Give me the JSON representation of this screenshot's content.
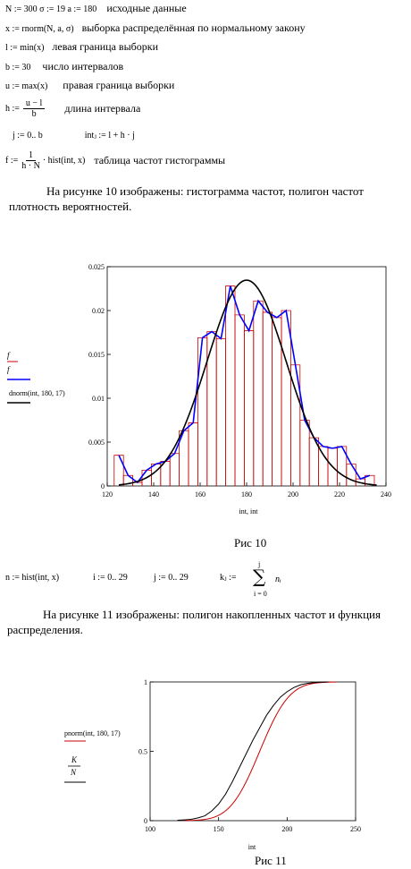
{
  "definitions": [
    {
      "formula": "N := 300   σ := 19     a := 180",
      "comment": "исходные данные"
    },
    {
      "formula": "x := rnorm(N, a, σ)",
      "comment": "выборка распределённая по нормальному закону"
    },
    {
      "formula": "l := min(x)",
      "comment": "левая граница выборки"
    },
    {
      "formula": "b := 30",
      "comment": "число интервалов"
    },
    {
      "formula": "u := max(x)",
      "comment": "правая граница выборки"
    },
    {
      "formula_lhs": "h :=",
      "frac_num": "u − l",
      "frac_den": "b",
      "comment": "длина интервала"
    },
    {
      "formula": "j := 0.. b",
      "formula2": "intⱼ := l + h · j"
    },
    {
      "formula_lhs": "f :=",
      "frac_num": "1",
      "frac_den": "h · N",
      "formula_rhs": "· hist(int, x)",
      "comment": "таблица частот гистограммы"
    }
  ],
  "paragraph1": "На рисунке 10 изображены: гистограмма частот, полигон частот плотность вероятностей.",
  "chart1": {
    "caption": "Рис 10",
    "legend": [
      "f",
      "f",
      "dnorm(int, 180, 17)"
    ],
    "xlabel": "int, int",
    "colors": {
      "bars": "#cc0000",
      "polygon": "#0000ff",
      "density": "#000000"
    }
  },
  "formula_row": {
    "a": "n := hist(int, x)",
    "b": "i := 0.. 29",
    "c": "j := 0.. 29",
    "k_lhs": "kⱼ :=",
    "k_top": "j",
    "k_bottom": "i = 0",
    "k_term": "nᵢ"
  },
  "paragraph2": "На рисунке 11 изображены: полигон накопленных частот и функция распределения.",
  "chart2": {
    "caption": "Рис 11",
    "legend": [
      "pnorm(int, 180, 17)",
      "K",
      "N"
    ],
    "xlabel": "int",
    "colors": {
      "pnorm": "#cc0000",
      "cum": "#000000"
    }
  },
  "chart_data": [
    {
      "type": "bar",
      "xlim": [
        120,
        240
      ],
      "ylim": [
        0,
        0.025
      ],
      "xticks": [
        "120",
        "140",
        "160",
        "180",
        "200",
        "220",
        "240"
      ],
      "yticks": [
        "0",
        "0.005",
        "0.01",
        "0.015",
        "0.02",
        "0.025"
      ],
      "x": [
        125,
        129,
        133,
        137,
        141,
        145,
        149,
        153,
        157,
        161,
        165,
        169,
        173,
        177,
        181,
        185,
        189,
        193,
        197,
        201,
        205,
        209,
        213,
        217,
        221,
        225,
        229,
        233
      ],
      "bars": [
        0.0035,
        0.0012,
        0.0004,
        0.0018,
        0.0025,
        0.0028,
        0.0037,
        0.0063,
        0.0072,
        0.0169,
        0.0176,
        0.0168,
        0.0228,
        0.0195,
        0.0177,
        0.0211,
        0.0198,
        0.0192,
        0.02,
        0.0138,
        0.0075,
        0.0055,
        0.0045,
        0.0043,
        0.0045,
        0.0025,
        0.0008,
        0.0012
      ],
      "density_mu": 180,
      "density_sigma": 17
    },
    {
      "type": "line",
      "xlim": [
        100,
        250
      ],
      "ylim": [
        0,
        1
      ],
      "xticks": [
        "100",
        "150",
        "200",
        "250"
      ],
      "yticks": [
        "0",
        "0.5",
        "1"
      ],
      "cum_x": [
        125,
        130,
        135,
        140,
        145,
        150,
        155,
        160,
        165,
        170,
        175,
        180,
        185,
        190,
        195,
        200,
        205,
        210,
        215,
        220,
        225,
        230,
        235
      ],
      "cum_y": [
        0.003,
        0.006,
        0.01,
        0.02,
        0.035,
        0.07,
        0.12,
        0.19,
        0.28,
        0.38,
        0.48,
        0.58,
        0.67,
        0.76,
        0.83,
        0.89,
        0.93,
        0.96,
        0.98,
        0.99,
        0.995,
        0.999,
        1.0
      ],
      "pnorm_mu": 180,
      "pnorm_sigma": 17
    }
  ]
}
